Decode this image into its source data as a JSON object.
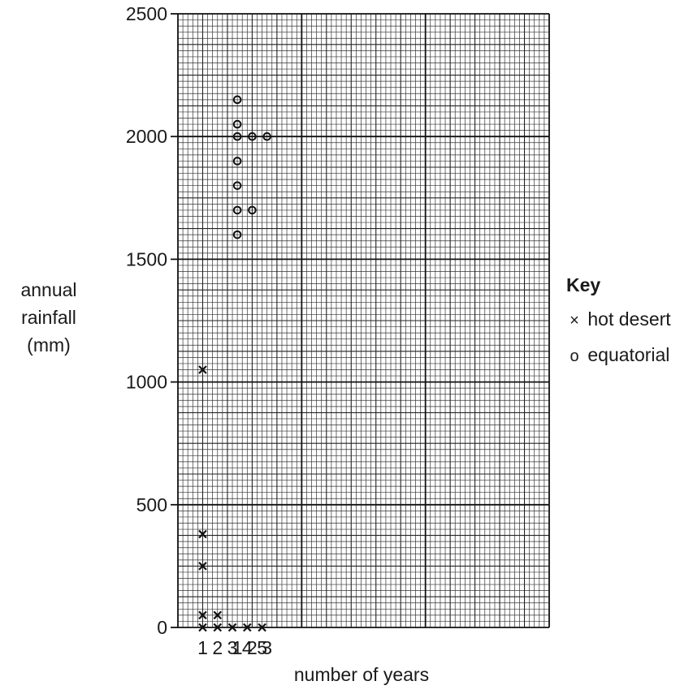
{
  "chart_data": {
    "type": "scatter",
    "title": "",
    "xlabel": "number of years",
    "ylabel": [
      "annual",
      "rainfall",
      "(mm)"
    ],
    "ylim": [
      0,
      2500
    ],
    "yticks": [
      0,
      500,
      1000,
      1500,
      2000,
      2500
    ],
    "grid": true,
    "legend_title": "Key",
    "legend_placement": "right",
    "series": [
      {
        "name": "hot desert",
        "marker": "×",
        "xticks": [
          "1",
          "2",
          "3",
          "4",
          "5"
        ],
        "points": [
          {
            "x": 1,
            "y": 0
          },
          {
            "x": 1,
            "y": 50
          },
          {
            "x": 1,
            "y": 250
          },
          {
            "x": 1,
            "y": 380
          },
          {
            "x": 1,
            "y": 1050
          },
          {
            "x": 2,
            "y": 0
          },
          {
            "x": 2,
            "y": 50
          },
          {
            "x": 3,
            "y": 0
          },
          {
            "x": 4,
            "y": 0
          },
          {
            "x": 5,
            "y": 0
          }
        ]
      },
      {
        "name": "equatorial",
        "marker": "o",
        "xticks": [
          "1",
          "2",
          "3"
        ],
        "points": [
          {
            "x": 1,
            "y": 1600
          },
          {
            "x": 1,
            "y": 1700
          },
          {
            "x": 1,
            "y": 1800
          },
          {
            "x": 1,
            "y": 1900
          },
          {
            "x": 1,
            "y": 2000
          },
          {
            "x": 1,
            "y": 2050
          },
          {
            "x": 1,
            "y": 2150
          },
          {
            "x": 2,
            "y": 1700
          },
          {
            "x": 2,
            "y": 2000
          },
          {
            "x": 3,
            "y": 2000
          }
        ]
      }
    ]
  }
}
